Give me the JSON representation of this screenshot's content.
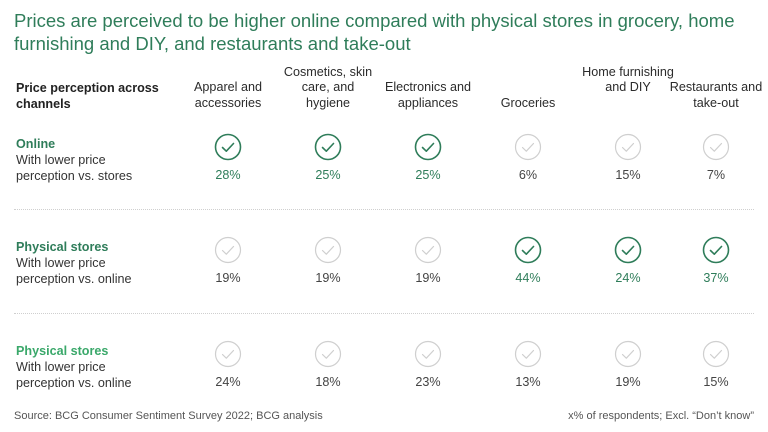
{
  "title": "Prices are perceived to be higher online compared with physical stores in grocery, home furnishing and DIY, and restaurants and take-out",
  "header": {
    "row_label": "Price perception across channels"
  },
  "colors": {
    "accent": "#2f7d5a",
    "accent_light": "#3aa86a",
    "muted": "#cfcfcf",
    "text": "#333333"
  },
  "chart_data": {
    "type": "table",
    "categories": [
      "Apparel and accessories",
      "Cosmetics, skin care, and hygiene",
      "Electronics and appliances",
      "Groceries",
      "Home furnishing and DIY",
      "Restaurants and take-out"
    ],
    "unit": "%",
    "rows": [
      {
        "channel": "Online",
        "description": "With lower price perception vs. stores",
        "values": [
          28,
          25,
          25,
          6,
          15,
          7
        ],
        "checked": [
          true,
          true,
          true,
          false,
          false,
          false
        ]
      },
      {
        "channel": "Physical stores",
        "description": "With lower price perception vs. online",
        "values": [
          19,
          19,
          19,
          44,
          24,
          37
        ],
        "checked": [
          false,
          false,
          false,
          true,
          true,
          true
        ]
      },
      {
        "channel": "Physical stores",
        "description": "With lower price perception vs. online",
        "values": [
          24,
          18,
          23,
          13,
          19,
          15
        ],
        "checked": [
          false,
          false,
          false,
          false,
          false,
          false
        ]
      }
    ]
  },
  "footer": {
    "source": "Source: BCG Consumer Sentiment Survey 2022; BCG analysis",
    "note": "x% of respondents; Excl. “Don’t know”"
  }
}
